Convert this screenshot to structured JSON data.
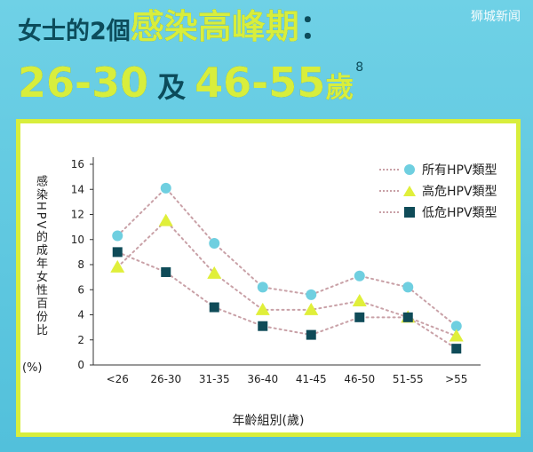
{
  "watermark": "狮城新闻",
  "headline": {
    "line1_a": "女士的2個",
    "line1_b": "感染高峰期",
    "line1_c": "：",
    "line2_a": "26-30",
    "line2_b": "及",
    "line2_c": "46-55",
    "line2_d": "歲",
    "line2_sup": "8"
  },
  "colors": {
    "series_all": "#6fcfe0",
    "series_high": "#e0ef3a",
    "series_low": "#0f4b58",
    "connector": "#c9a1a7",
    "accent_green": "#d8ee3c",
    "bg_blue": "#5cc7df"
  },
  "chart_data": {
    "type": "line",
    "title": "",
    "xlabel": "年齡組別(歲)",
    "ylabel": "感染HPV的成年女性百份比",
    "ylabel_unit": "(%)",
    "ylim": [
      0,
      16
    ],
    "yticks": [
      0,
      2,
      4,
      6,
      8,
      10,
      12,
      14,
      16
    ],
    "grid": false,
    "legend_position": "top-right",
    "categories": [
      "<26",
      "26-30",
      "31-35",
      "36-40",
      "41-45",
      "46-50",
      "51-55",
      ">55"
    ],
    "series": [
      {
        "name": "所有HPV類型",
        "marker": "circle",
        "values": [
          10.3,
          14.1,
          9.7,
          6.2,
          5.6,
          7.1,
          6.2,
          3.1
        ]
      },
      {
        "name": "高危HPV類型",
        "marker": "triangle",
        "values": [
          7.8,
          11.5,
          7.3,
          4.4,
          4.4,
          5.1,
          3.8,
          2.3
        ]
      },
      {
        "name": "低危HPV類型",
        "marker": "square",
        "values": [
          9.0,
          7.4,
          4.6,
          3.1,
          2.4,
          3.8,
          3.8,
          1.3
        ]
      }
    ]
  }
}
